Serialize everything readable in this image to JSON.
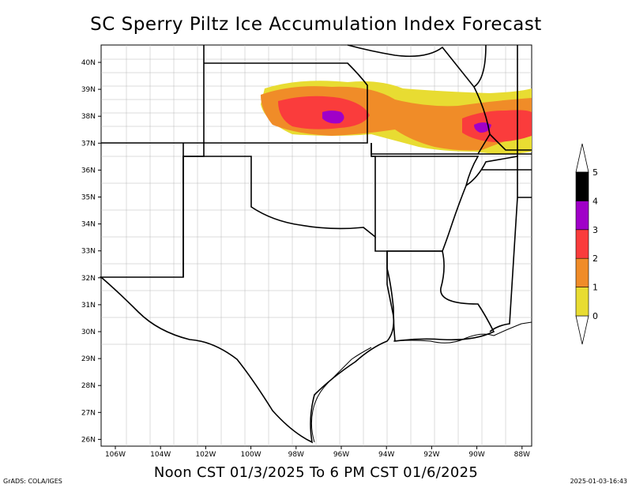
{
  "title": "SC Sperry Piltz Ice Accumulation Index Forecast",
  "subtitle": "Noon CST 01/3/2025 To 6 PM CST 01/6/2025",
  "footer_left": "GrADS: COLA/IGES",
  "footer_right": "2025-01-03-16:43",
  "lat_labels": [
    "40N",
    "39N",
    "38N",
    "37N",
    "36N",
    "35N",
    "34N",
    "33N",
    "32N",
    "31N",
    "30N",
    "29N",
    "28N",
    "27N",
    "26N"
  ],
  "lon_labels": [
    "106W",
    "104W",
    "102W",
    "100W",
    "98W",
    "96W",
    "94W",
    "92W",
    "90W",
    "88W"
  ],
  "legend": {
    "labels": [
      "0",
      "1",
      "2",
      "3",
      "4",
      "5"
    ],
    "colors": [
      "#e8dc32",
      "#f08c28",
      "#fa3c3c",
      "#a000c8",
      "#000000",
      "#ffffff"
    ]
  }
}
